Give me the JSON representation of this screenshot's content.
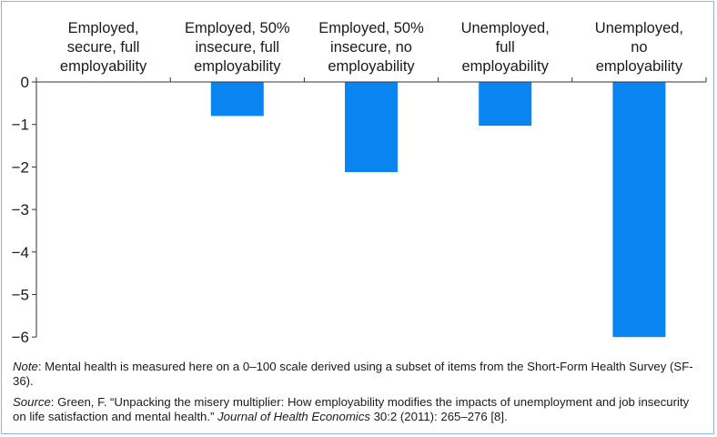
{
  "chart_data": {
    "type": "bar",
    "categories": [
      [
        "Employed,",
        "secure, full",
        "employability"
      ],
      [
        "Employed, 50%",
        "insecure, full",
        "employability"
      ],
      [
        "Employed, 50%",
        "insecure, no",
        "employability"
      ],
      [
        "Unemployed,",
        "full",
        "employability"
      ],
      [
        "Unemployed,",
        "no",
        "employability"
      ]
    ],
    "values": [
      0,
      -0.8,
      -2.12,
      -1.03,
      -6.0
    ],
    "y_ticks": [
      "0",
      "−1",
      "−2",
      "−3",
      "−4",
      "−5",
      "−6"
    ],
    "ylim": [
      -6,
      0
    ],
    "bar_color": "#0a84f0",
    "grid": false,
    "xlabel": "",
    "ylabel": ""
  },
  "note": {
    "label": "Note",
    "text": ": Mental health is measured here on a 0–100 scale derived using a subset of items from the Short-Form Health Survey (SF-36)."
  },
  "source": {
    "label": "Source",
    "text_before": ": Green, F. “Unpacking the misery multiplier: How employability modifies the impacts of unemployment and job insecurity on life satisfaction and mental health.” ",
    "journal": "Journal of Health Economics",
    "text_after": " 30:2 (2011): 265–276 [8]."
  }
}
